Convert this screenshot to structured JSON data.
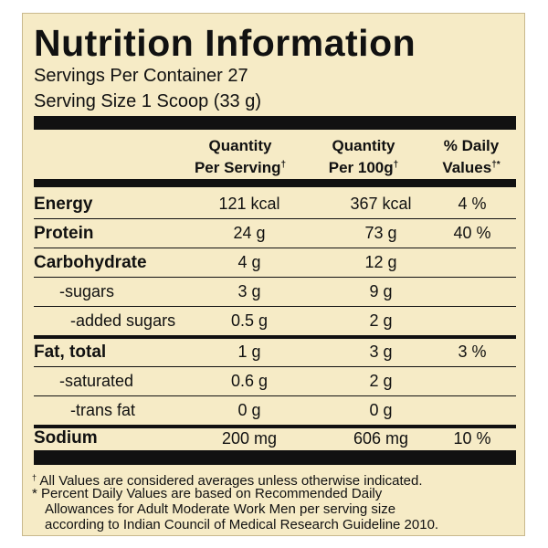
{
  "label": {
    "title": "Nutrition Information",
    "servings_per_container": "Servings Per Container 27",
    "serving_size": "Serving Size 1 Scoop (33 g)"
  },
  "header": {
    "per_serving_line1": "Quantity",
    "per_serving_line2": "Per Serving",
    "per_100g_line1": "Quantity",
    "per_100g_line2": "Per 100g",
    "daily_line1": "% Daily",
    "daily_line2": "Values",
    "dagger": "†",
    "dagger_star": "†*"
  },
  "rows": [
    {
      "label": "Energy",
      "serving": "121 kcal",
      "per100": "367 kcal",
      "dv": "4 %"
    },
    {
      "label": "Protein",
      "serving": "24 g",
      "per100": "73 g",
      "dv": "40 %"
    },
    {
      "label": "Carbohydrate",
      "serving": "4 g",
      "per100": "12 g",
      "dv": ""
    },
    {
      "label": "-sugars",
      "serving": "3 g",
      "per100": "9 g",
      "dv": ""
    },
    {
      "label": "-added sugars",
      "serving": "0.5 g",
      "per100": "2 g",
      "dv": ""
    },
    {
      "label": "Fat, total",
      "serving": "1 g",
      "per100": "3 g",
      "dv": "3 %"
    },
    {
      "label": "-saturated",
      "serving": "0.6 g",
      "per100": "2 g",
      "dv": ""
    },
    {
      "label": "-trans fat",
      "serving": "0 g",
      "per100": "0 g",
      "dv": ""
    },
    {
      "label": "Sodium",
      "serving": "200 mg",
      "per100": "606 mg",
      "dv": "10 %"
    }
  ],
  "footnotes": {
    "dagger_mark": "†",
    "line1": " All Values are considered averages unless otherwise indicated.",
    "line2": "* Percent Daily Values are based on Recommended Daily",
    "line3": "Allowances for Adult Moderate Work Men per serving size",
    "line4": "according to Indian Council of Medical Research Guideline 2010."
  }
}
